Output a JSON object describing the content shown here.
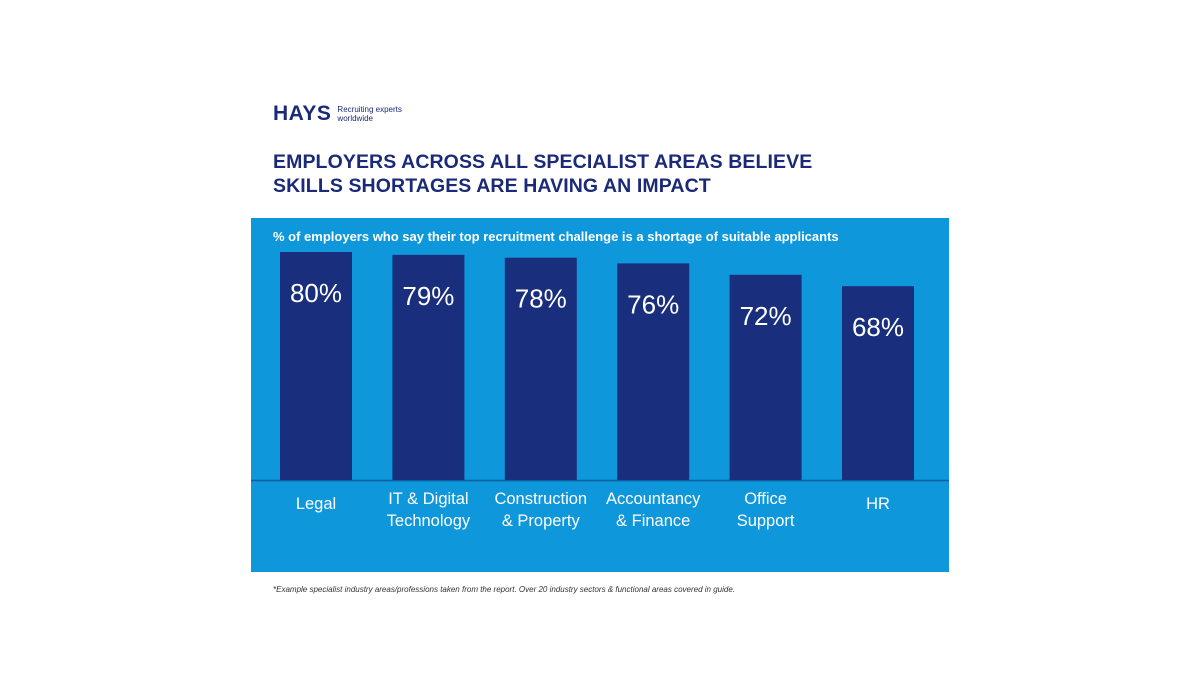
{
  "brand": {
    "name": "HAYS",
    "tagline_line1": "Recruiting experts",
    "tagline_line2": "worldwide",
    "color": "#1b2a78"
  },
  "headline": {
    "line1": "EMPLOYERS ACROSS ALL SPECIALIST AREAS BELIEVE",
    "line2": "SKILLS SHORTAGES ARE HAVING AN IMPACT"
  },
  "footnote": "*Example specialist industry areas/professions taken from the report. Over 20 industry sectors & functional areas covered in guide.",
  "colors": {
    "panel": "#0f97dc",
    "bar": "#192e7c",
    "bar_label": "#ffffff",
    "category_label": "#ffffff"
  },
  "chart_data": {
    "type": "bar",
    "title": "% of employers who say their top recruitment challenge is a shortage of suitable applicants",
    "categories": [
      [
        "Legal"
      ],
      [
        "IT & Digital",
        "Technology"
      ],
      [
        "Construction",
        "& Property"
      ],
      [
        "Accountancy",
        "& Finance"
      ],
      [
        "Office",
        "Support"
      ],
      [
        "HR"
      ]
    ],
    "values": [
      80,
      79,
      78,
      76,
      72,
      68
    ],
    "value_labels": [
      "80%",
      "79%",
      "78%",
      "76%",
      "72%",
      "68%"
    ],
    "ylim": [
      0,
      100
    ],
    "grid": false,
    "legend": "none"
  }
}
